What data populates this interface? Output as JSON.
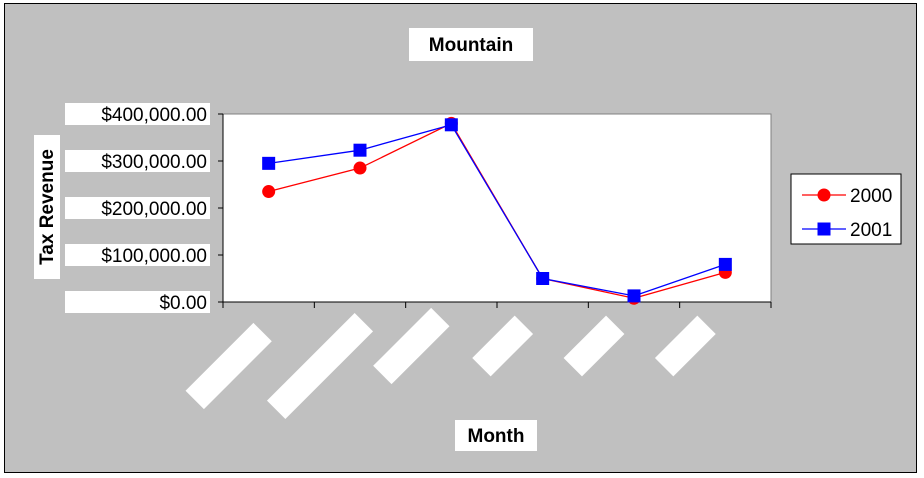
{
  "chart_data": {
    "type": "line",
    "title": "Mountain",
    "xlabel": "Month",
    "ylabel": "Tax Revenue",
    "categories": [
      "",
      "",
      "",
      "",
      "",
      ""
    ],
    "y_tick_labels": [
      "$0.00",
      "$100,000.00",
      "$200,000.00",
      "$300,000.00",
      "$400,000.00"
    ],
    "y_ticks": [
      0,
      100000,
      200000,
      300000,
      400000
    ],
    "ylim": [
      0,
      400000
    ],
    "grid": false,
    "legend_position": "right",
    "series": [
      {
        "name": "2000",
        "color": "#ff0000",
        "marker": "circle",
        "values": [
          235000,
          285000,
          380000,
          50000,
          8000,
          63000
        ]
      },
      {
        "name": "2001",
        "color": "#0000ff",
        "marker": "square",
        "values": [
          295000,
          323000,
          377000,
          50000,
          13000,
          80000
        ]
      }
    ]
  },
  "colors": {
    "chart_background": "#c0c0c0",
    "plot_background": "#ffffff",
    "axis": "#000000"
  }
}
